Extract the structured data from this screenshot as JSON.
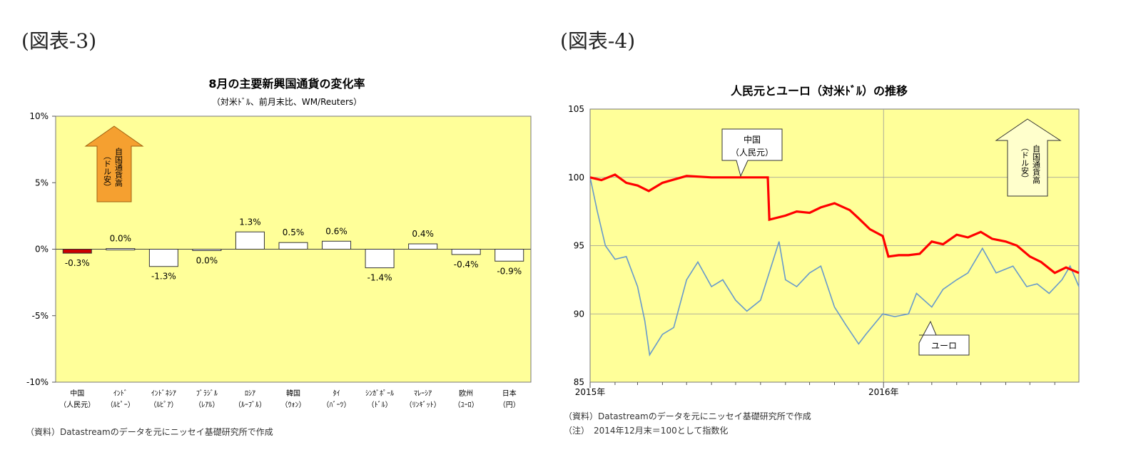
{
  "left": {
    "fig_label": "(図表-3)",
    "source": "（資料）Datastreamのデータを元にニッセイ基礎研究所で作成",
    "arrow_text": [
      "（ドル安）",
      "自国通貨高"
    ]
  },
  "right": {
    "fig_label": "(図表-4)",
    "source": "（資料）Datastreamのデータを元にニッセイ基礎研究所で作成",
    "note": "（注）　2014年12月末＝100として指数化",
    "arrow_text": [
      "自国通貨高",
      "（ドル安）"
    ],
    "callout_cny": [
      "中国",
      "（人民元）"
    ],
    "callout_eur": "ユーロ"
  },
  "colors": {
    "plot_bg": "#ffff99",
    "cny_bar": "#cc0000",
    "cny_line": "#ff0000",
    "eur_line": "#6699cc",
    "arrow_left": "#f5a030"
  },
  "chart_data": [
    {
      "type": "bar",
      "title": "8月の主要新興国通貨の変化率",
      "subtitle": "（対米ﾄﾞﾙ、前月末比、WM/Reuters）",
      "categories": [
        [
          "中国",
          "（人民元）"
        ],
        [
          "ｲﾝﾄﾞ",
          "（ﾙﾋﾟｰ）"
        ],
        [
          "ｲﾝﾄﾞﾈｼｱ",
          "（ﾙﾋﾟｱ）"
        ],
        [
          "ﾌﾞﾗｼﾞﾙ",
          "（ﾚｱﾙ）"
        ],
        [
          "ﾛｼｱ",
          "（ﾙｰﾌﾞﾙ）"
        ],
        [
          "韓国",
          "（ｳｫﾝ）"
        ],
        [
          "ﾀｲ",
          "（ﾊﾞｰﾂ）"
        ],
        [
          "ｼﾝｶﾞﾎﾟｰﾙ",
          "（ﾄﾞﾙ）"
        ],
        [
          "ﾏﾚｰｼｱ",
          "（ﾘﾝｷﾞｯﾄ）"
        ],
        [
          "欧州",
          "（ﾕｰﾛ）"
        ],
        [
          "日本",
          "（円）"
        ]
      ],
      "values": [
        -0.3,
        0.05,
        -1.3,
        -0.05,
        1.3,
        0.5,
        0.6,
        -1.4,
        0.4,
        -0.4,
        -0.9
      ],
      "data_labels": [
        "-0.3%",
        "0.0%",
        "-1.3%",
        "0.0%",
        "1.3%",
        "0.5%",
        "0.6%",
        "-1.4%",
        "0.4%",
        "-0.4%",
        "-0.9%"
      ],
      "ylim": [
        -10,
        10
      ],
      "yticks": [
        10,
        5,
        0,
        -5,
        -10
      ],
      "ytick_labels": [
        "10%",
        "5%",
        "0%",
        "-5%",
        "-10%"
      ],
      "xlabel": "",
      "ylabel": ""
    },
    {
      "type": "line",
      "title": "人民元とユーロ（対米ﾄﾞﾙ）の推移",
      "x_tick_labels": [
        "2015年",
        "2016年"
      ],
      "x_range": [
        "2015-01-01",
        "2016-08-31"
      ],
      "ylim": [
        85,
        105
      ],
      "yticks": [
        105,
        100,
        95,
        90,
        85
      ],
      "xlabel": "",
      "ylabel": "",
      "series": [
        {
          "name": "中国（人民元）",
          "x": [
            "2015-01-01",
            "2015-01-15",
            "2015-02-01",
            "2015-02-15",
            "2015-03-01",
            "2015-03-15",
            "2015-04-01",
            "2015-05-01",
            "2015-06-01",
            "2015-07-01",
            "2015-08-10",
            "2015-08-12",
            "2015-09-01",
            "2015-09-15",
            "2015-10-01",
            "2015-10-15",
            "2015-11-01",
            "2015-11-20",
            "2015-12-01",
            "2015-12-15",
            "2015-12-31",
            "2016-01-07",
            "2016-01-20",
            "2016-02-01",
            "2016-02-15",
            "2016-03-01",
            "2016-03-15",
            "2016-04-01",
            "2016-04-15",
            "2016-05-01",
            "2016-05-15",
            "2016-06-01",
            "2016-06-15",
            "2016-07-01",
            "2016-07-15",
            "2016-08-01",
            "2016-08-15",
            "2016-08-31"
          ],
          "values": [
            100.0,
            99.8,
            100.2,
            99.6,
            99.4,
            99.0,
            99.6,
            100.1,
            100.0,
            100.0,
            100.0,
            96.9,
            97.2,
            97.5,
            97.4,
            97.8,
            98.1,
            97.6,
            97.0,
            96.2,
            95.7,
            94.2,
            94.3,
            94.3,
            94.4,
            95.3,
            95.1,
            95.8,
            95.6,
            96.0,
            95.5,
            95.3,
            95.0,
            94.2,
            93.8,
            93.0,
            93.4,
            93.0
          ]
        },
        {
          "name": "ユーロ",
          "x": [
            "2015-01-01",
            "2015-01-10",
            "2015-01-20",
            "2015-02-01",
            "2015-02-15",
            "2015-03-01",
            "2015-03-10",
            "2015-03-16",
            "2015-04-01",
            "2015-04-15",
            "2015-05-01",
            "2015-05-15",
            "2015-06-01",
            "2015-06-15",
            "2015-07-01",
            "2015-07-15",
            "2015-08-01",
            "2015-08-24",
            "2015-09-01",
            "2015-09-15",
            "2015-10-01",
            "2015-10-15",
            "2015-11-01",
            "2015-11-15",
            "2015-12-01",
            "2015-12-10",
            "2015-12-31",
            "2016-01-15",
            "2016-02-01",
            "2016-02-11",
            "2016-03-01",
            "2016-03-15",
            "2016-04-01",
            "2016-04-15",
            "2016-05-03",
            "2016-05-20",
            "2016-06-10",
            "2016-06-27",
            "2016-07-10",
            "2016-07-25",
            "2016-08-10",
            "2016-08-20",
            "2016-08-31"
          ],
          "values": [
            100.0,
            97.5,
            95.0,
            94.0,
            94.2,
            92.0,
            89.5,
            87.0,
            88.5,
            89.0,
            92.5,
            93.8,
            92.0,
            92.5,
            91.0,
            90.2,
            91.0,
            95.3,
            92.5,
            92.0,
            93.0,
            93.5,
            90.5,
            89.2,
            87.8,
            88.5,
            90.0,
            89.8,
            90.0,
            91.5,
            90.5,
            91.8,
            92.5,
            93.0,
            94.8,
            93.0,
            93.5,
            92.0,
            92.2,
            91.5,
            92.5,
            93.5,
            92.0
          ]
        }
      ]
    }
  ]
}
